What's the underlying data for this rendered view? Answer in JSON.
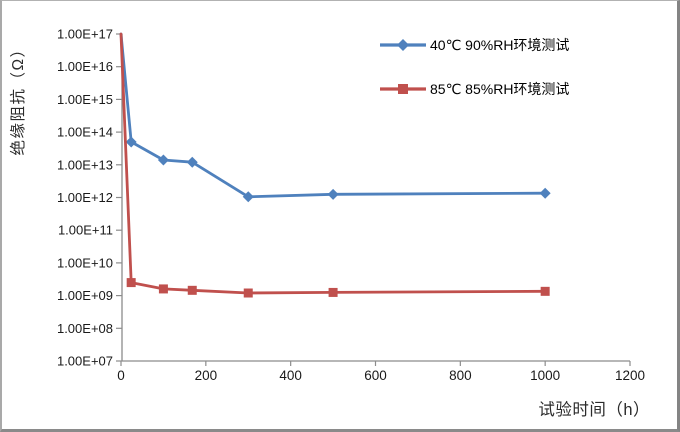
{
  "chart_data": {
    "type": "line",
    "title": "",
    "xlabel": "试验时间（h）",
    "ylabel": "绝缘阻抗（Ω）",
    "x_scale": "linear",
    "y_scale": "log",
    "xlim": [
      0,
      1200
    ],
    "ylim": [
      10000000.0,
      1e+17
    ],
    "x_ticks": [
      0,
      200,
      400,
      600,
      800,
      1000,
      1200
    ],
    "y_tick_labels": [
      "1.00E+17",
      "1.00E+16",
      "1.00E+15",
      "1.00E+14",
      "1.00E+13",
      "1.00E+12",
      "1.00E+11",
      "1.00E+10",
      "1.00E+09",
      "1.00E+08",
      "1.00E+07"
    ],
    "grid": false,
    "legend": {
      "position": "inside-top-right",
      "border": false
    },
    "series": [
      {
        "name": "40℃ 90%RH环境测试",
        "color": "#4F81BD",
        "marker": "diamond",
        "x": [
          0,
          24,
          100,
          168,
          300,
          500,
          1000
        ],
        "y": [
          1e+17,
          50000000000000.0,
          14000000000000.0,
          12000000000000.0,
          1050000000000.0,
          1250000000000.0,
          1350000000000.0
        ]
      },
      {
        "name": "85℃ 85%RH环境测试",
        "color": "#C0504D",
        "marker": "square",
        "x": [
          0,
          24,
          100,
          168,
          300,
          500,
          1000
        ],
        "y": [
          1e+17,
          2500000000.0,
          1600000000.0,
          1450000000.0,
          1200000000.0,
          1250000000.0,
          1350000000.0
        ]
      }
    ]
  },
  "colors": {
    "background": "#FFFFFF",
    "axis_line": "#8C8C8C",
    "tick_text": "#1A1A1A",
    "axis_title_text": "#2B2B2B",
    "legend_text": "#000000",
    "frame_border": "#848484",
    "series_blue": "#4F81BD",
    "series_red": "#C0504D"
  }
}
